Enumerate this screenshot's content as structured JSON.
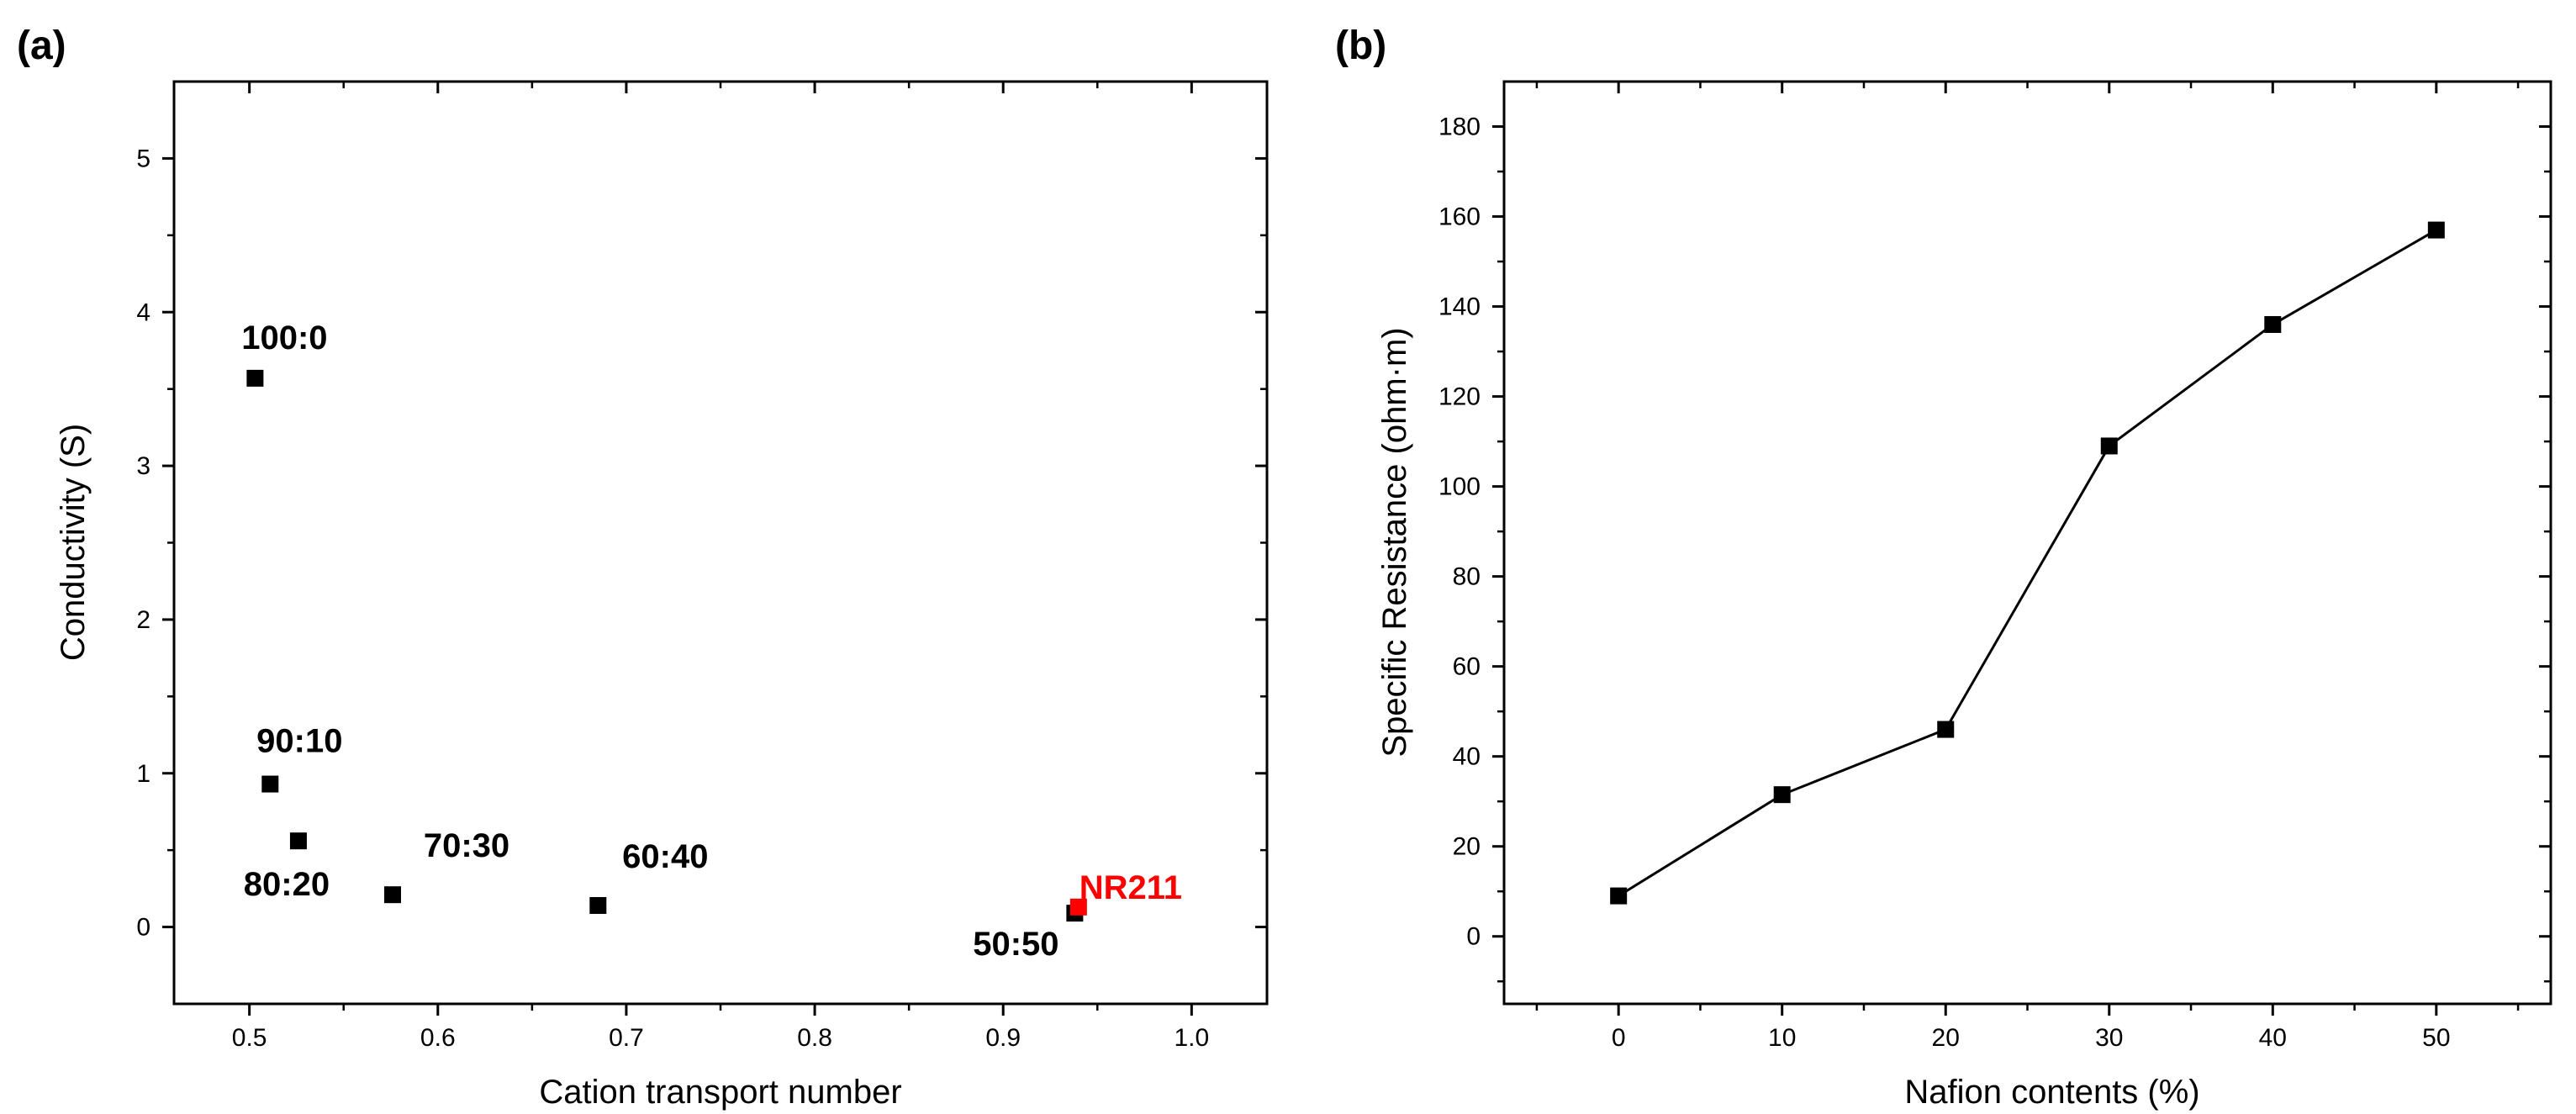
{
  "chart_data": [
    {
      "panel": "(a)",
      "type": "scatter",
      "title": "",
      "xlabel": "Cation transport number",
      "ylabel": "Conductivity (S)",
      "xlim": [
        0.46,
        1.04
      ],
      "ylim": [
        -0.5,
        5.5
      ],
      "xticks": [
        "0.5",
        "0.6",
        "0.7",
        "0.8",
        "0.9",
        "1.0"
      ],
      "yticks": [
        "0",
        "1",
        "2",
        "3",
        "4",
        "5"
      ],
      "points": [
        {
          "label": "100:0",
          "x": 0.503,
          "y": 3.57,
          "color": "#000000"
        },
        {
          "label": "90:10",
          "x": 0.511,
          "y": 0.93,
          "color": "#000000"
        },
        {
          "label": "80:20",
          "x": 0.526,
          "y": 0.56,
          "color": "#000000"
        },
        {
          "label": "70:30",
          "x": 0.576,
          "y": 0.21,
          "color": "#000000"
        },
        {
          "label": "60:40",
          "x": 0.685,
          "y": 0.14,
          "color": "#000000"
        },
        {
          "label": "50:50",
          "x": 0.938,
          "y": 0.09,
          "color": "#000000"
        },
        {
          "label": "NR211",
          "x": 0.94,
          "y": 0.13,
          "color": "#ff0000"
        }
      ]
    },
    {
      "panel": "(b)",
      "type": "line",
      "title": "",
      "xlabel": "Nafion contents (%)",
      "ylabel": "Specific Resistance (ohm·m)",
      "xlim": [
        -7,
        57
      ],
      "ylim": [
        -15,
        190
      ],
      "xticks": [
        "0",
        "10",
        "20",
        "30",
        "40",
        "50"
      ],
      "yticks": [
        "0",
        "20",
        "40",
        "60",
        "80",
        "100",
        "120",
        "140",
        "160",
        "180"
      ],
      "x": [
        0,
        10,
        20,
        30,
        40,
        50
      ],
      "values": [
        9,
        31.5,
        46,
        109,
        136,
        157
      ],
      "marker": "square",
      "color": "#000000"
    }
  ]
}
